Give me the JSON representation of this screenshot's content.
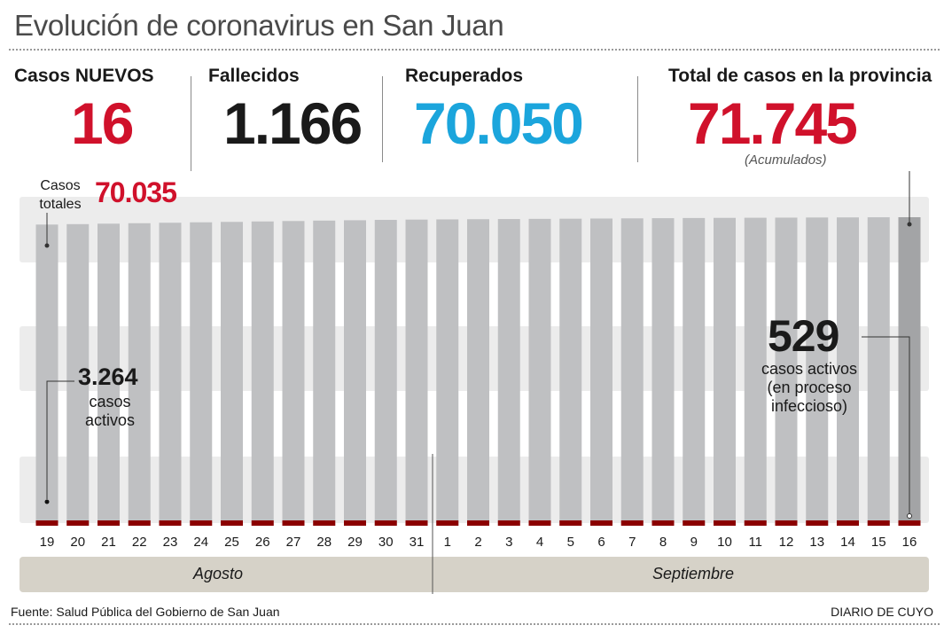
{
  "title": "Evolución de coronavirus en San Juan",
  "stats": {
    "nuevos": {
      "label": "Casos NUEVOS",
      "value": "16"
    },
    "fallecidos": {
      "label": "Fallecidos",
      "value": "1.166"
    },
    "recuperados": {
      "label": "Recuperados",
      "value": "70.050"
    },
    "total": {
      "label": "Total de casos en la provincia",
      "value": "71.745",
      "note": "(Acumulados)"
    }
  },
  "casos_totales": {
    "label": "Casos totales",
    "value": "70.035"
  },
  "callouts": {
    "start": {
      "value": "3.264",
      "text": "casos activos"
    },
    "end": {
      "value": "529",
      "text": "casos activos (en proceso infeccioso)"
    }
  },
  "months": [
    "Agosto",
    "Septiembre"
  ],
  "footer": {
    "source": "Fuente: Salud Pública del Gobierno de San Juan",
    "brand": "DIARIO DE CUYO"
  },
  "colors": {
    "red": "#d0112b",
    "blue": "#1ba5dc",
    "dark": "#1a1a1a",
    "bar_total": "#bfc0c2",
    "bar_total_last": "#a3a4a6",
    "bar_active": "#8b0000",
    "band": "#ececec",
    "month_strip": "#d6d2c8"
  },
  "chart_data": {
    "type": "bar",
    "categories": [
      "19",
      "20",
      "21",
      "22",
      "23",
      "24",
      "25",
      "26",
      "27",
      "28",
      "29",
      "30",
      "31",
      "1",
      "2",
      "3",
      "4",
      "5",
      "6",
      "7",
      "8",
      "9",
      "10",
      "11",
      "12",
      "13",
      "14",
      "15",
      "16"
    ],
    "series": [
      {
        "values": [
          70035,
          70130,
          70240,
          70350,
          70460,
          70560,
          70660,
          70760,
          70860,
          70960,
          71040,
          71120,
          71190,
          71240,
          71280,
          71320,
          71360,
          71400,
          71440,
          71480,
          71520,
          71560,
          71590,
          71620,
          71650,
          71680,
          71700,
          71729,
          71745
        ]
      },
      {
        "values": [
          3264,
          3050,
          2980,
          2850,
          2620,
          2440,
          2230,
          2040,
          1830,
          1650,
          1520,
          1280,
          1150,
          1000,
          870,
          820,
          800,
          790,
          720,
          640,
          620,
          610,
          590,
          570,
          560,
          550,
          560,
          545,
          529
        ]
      }
    ],
    "ylim": [
      0,
      71745
    ]
  }
}
